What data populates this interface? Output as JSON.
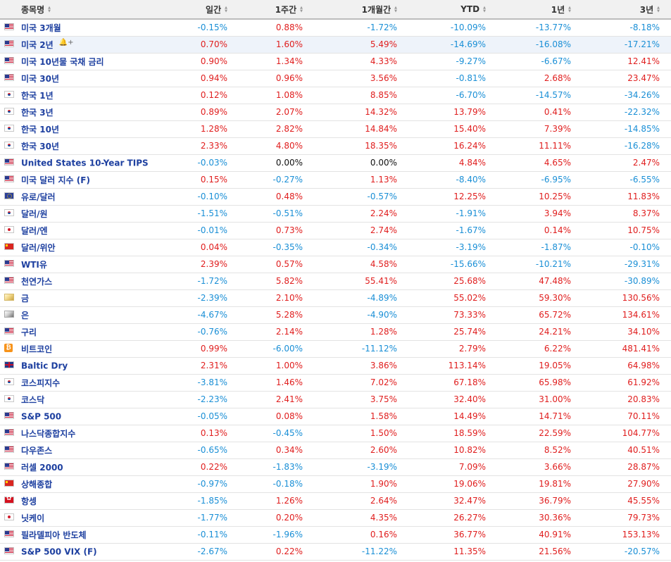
{
  "columns": [
    {
      "label": "종목명",
      "sort_icon": "sort-icon"
    },
    {
      "label": "일간",
      "sort_icon": "sort-icon"
    },
    {
      "label": "1주간",
      "sort_icon": "sort-icon"
    },
    {
      "label": "1개월간",
      "sort_icon": "sort-icon"
    },
    {
      "label": "YTD",
      "sort_icon": "sort-icon"
    },
    {
      "label": "1년",
      "sort_icon": "sort-icon"
    },
    {
      "label": "3년",
      "sort_icon": "sort-icon"
    }
  ],
  "highlighted_row_actions": {
    "alert_icon": "bell-plus-icon",
    "remove_icon": "close-icon",
    "remove_symbol": "×",
    "alert_symbol": "🔔+"
  },
  "colors": {
    "positive": "#e01e1e",
    "negative": "#1a8fd6",
    "neutral": "#111111",
    "name_link": "#1e40a0",
    "highlight_row": "#eef3fa"
  },
  "rows": [
    {
      "flag": "us-flag-icon",
      "name": "미국 3개월",
      "values": [
        "-0.15%",
        "0.88%",
        "-1.72%",
        "-10.09%",
        "-13.77%",
        "-8.18%"
      ]
    },
    {
      "flag": "us-flag-icon",
      "name": "미국 2년",
      "highlighted": true,
      "values": [
        "0.70%",
        "1.60%",
        "5.49%",
        "-14.69%",
        "-16.08%",
        "-17.21%"
      ]
    },
    {
      "flag": "us-flag-icon",
      "name": "미국 10년물 국채 금리",
      "values": [
        "0.90%",
        "1.34%",
        "4.33%",
        "-9.27%",
        "-6.67%",
        "12.41%"
      ]
    },
    {
      "flag": "us-flag-icon",
      "name": "미국 30년",
      "values": [
        "0.94%",
        "0.96%",
        "3.56%",
        "-0.81%",
        "2.68%",
        "23.47%"
      ]
    },
    {
      "flag": "kr-flag-icon",
      "name": "한국 1년",
      "values": [
        "0.12%",
        "1.08%",
        "8.85%",
        "-6.70%",
        "-14.57%",
        "-34.26%"
      ]
    },
    {
      "flag": "kr-flag-icon",
      "name": "한국 3년",
      "values": [
        "0.89%",
        "2.07%",
        "14.32%",
        "13.79%",
        "0.41%",
        "-22.32%"
      ]
    },
    {
      "flag": "kr-flag-icon",
      "name": "한국 10년",
      "values": [
        "1.28%",
        "2.82%",
        "14.84%",
        "15.40%",
        "7.39%",
        "-14.85%"
      ]
    },
    {
      "flag": "kr-flag-icon",
      "name": "한국 30년",
      "values": [
        "2.33%",
        "4.80%",
        "18.35%",
        "16.24%",
        "11.11%",
        "-16.28%"
      ]
    },
    {
      "flag": "us-flag-icon",
      "name": "United States 10-Year TIPS",
      "values": [
        "-0.03%",
        "0.00%",
        "0.00%",
        "4.84%",
        "4.65%",
        "2.47%"
      ]
    },
    {
      "flag": "us-flag-icon",
      "name": "미국 달러 지수 (F)",
      "values": [
        "0.15%",
        "-0.27%",
        "1.13%",
        "-8.40%",
        "-6.95%",
        "-6.55%"
      ]
    },
    {
      "flag": "eu-flag-icon",
      "name": "유로/달러",
      "values": [
        "-0.10%",
        "0.48%",
        "-0.57%",
        "12.25%",
        "10.25%",
        "11.83%"
      ]
    },
    {
      "flag": "kr-flag-icon",
      "name": "달러/원",
      "values": [
        "-1.51%",
        "-0.51%",
        "2.24%",
        "-1.91%",
        "3.94%",
        "8.37%"
      ]
    },
    {
      "flag": "jp-flag-icon",
      "name": "달러/엔",
      "values": [
        "-0.01%",
        "0.73%",
        "2.74%",
        "-1.67%",
        "0.14%",
        "10.75%"
      ]
    },
    {
      "flag": "cn-flag-icon",
      "name": "달러/위안",
      "values": [
        "0.04%",
        "-0.35%",
        "-0.34%",
        "-3.19%",
        "-1.87%",
        "-0.10%"
      ]
    },
    {
      "flag": "us-flag-icon",
      "name": "WTI유",
      "values": [
        "2.39%",
        "0.57%",
        "4.58%",
        "-15.66%",
        "-10.21%",
        "-29.31%"
      ]
    },
    {
      "flag": "us-flag-icon",
      "name": "천연가스",
      "values": [
        "-1.72%",
        "5.82%",
        "55.41%",
        "25.68%",
        "47.48%",
        "-30.89%"
      ]
    },
    {
      "flag": "gold-icon",
      "name": "금",
      "values": [
        "-2.39%",
        "2.10%",
        "-4.89%",
        "55.02%",
        "59.30%",
        "130.56%"
      ]
    },
    {
      "flag": "silver-icon",
      "name": "은",
      "values": [
        "-4.67%",
        "5.28%",
        "-4.90%",
        "73.33%",
        "65.72%",
        "134.61%"
      ]
    },
    {
      "flag": "us-flag-icon",
      "name": "구리",
      "values": [
        "-0.76%",
        "2.14%",
        "1.28%",
        "25.74%",
        "24.21%",
        "34.10%"
      ]
    },
    {
      "flag": "bitcoin-icon",
      "name": "비트코인",
      "values": [
        "0.99%",
        "-6.00%",
        "-11.12%",
        "2.79%",
        "6.22%",
        "481.41%"
      ]
    },
    {
      "flag": "gb-flag-icon",
      "name": "Baltic Dry",
      "values": [
        "2.31%",
        "1.00%",
        "3.86%",
        "113.14%",
        "19.05%",
        "64.98%"
      ]
    },
    {
      "flag": "kr-flag-icon",
      "name": "코스피지수",
      "values": [
        "-3.81%",
        "1.46%",
        "7.02%",
        "67.18%",
        "65.98%",
        "61.92%"
      ]
    },
    {
      "flag": "kr-flag-icon",
      "name": "코스닥",
      "values": [
        "-2.23%",
        "2.41%",
        "3.75%",
        "32.40%",
        "31.00%",
        "20.83%"
      ]
    },
    {
      "flag": "us-flag-icon",
      "name": "S&P 500",
      "values": [
        "-0.05%",
        "0.08%",
        "1.58%",
        "14.49%",
        "14.71%",
        "70.11%"
      ]
    },
    {
      "flag": "us-flag-icon",
      "name": "나스닥종합지수",
      "values": [
        "0.13%",
        "-0.45%",
        "1.50%",
        "18.59%",
        "22.59%",
        "104.77%"
      ]
    },
    {
      "flag": "us-flag-icon",
      "name": "다우존스",
      "values": [
        "-0.65%",
        "0.34%",
        "2.60%",
        "10.82%",
        "8.52%",
        "40.51%"
      ]
    },
    {
      "flag": "us-flag-icon",
      "name": "러셀 2000",
      "values": [
        "0.22%",
        "-1.83%",
        "-3.19%",
        "7.09%",
        "3.66%",
        "28.87%"
      ]
    },
    {
      "flag": "cn-flag-icon",
      "name": "상해종합",
      "values": [
        "-0.97%",
        "-0.18%",
        "1.90%",
        "19.06%",
        "19.81%",
        "27.90%"
      ]
    },
    {
      "flag": "hk-flag-icon",
      "name": "항셍",
      "values": [
        "-1.85%",
        "1.26%",
        "2.64%",
        "32.47%",
        "36.79%",
        "45.55%"
      ]
    },
    {
      "flag": "jp-flag-icon",
      "name": "닛케이",
      "values": [
        "-1.77%",
        "0.20%",
        "4.35%",
        "26.27%",
        "30.36%",
        "79.73%"
      ]
    },
    {
      "flag": "us-flag-icon",
      "name": "필라델피아 반도체",
      "values": [
        "-0.11%",
        "-1.96%",
        "0.16%",
        "36.77%",
        "40.91%",
        "153.13%"
      ]
    },
    {
      "flag": "us-flag-icon",
      "name": "S&P 500 VIX (F)",
      "values": [
        "-2.67%",
        "0.22%",
        "-11.22%",
        "11.35%",
        "21.56%",
        "-20.57%"
      ]
    }
  ]
}
